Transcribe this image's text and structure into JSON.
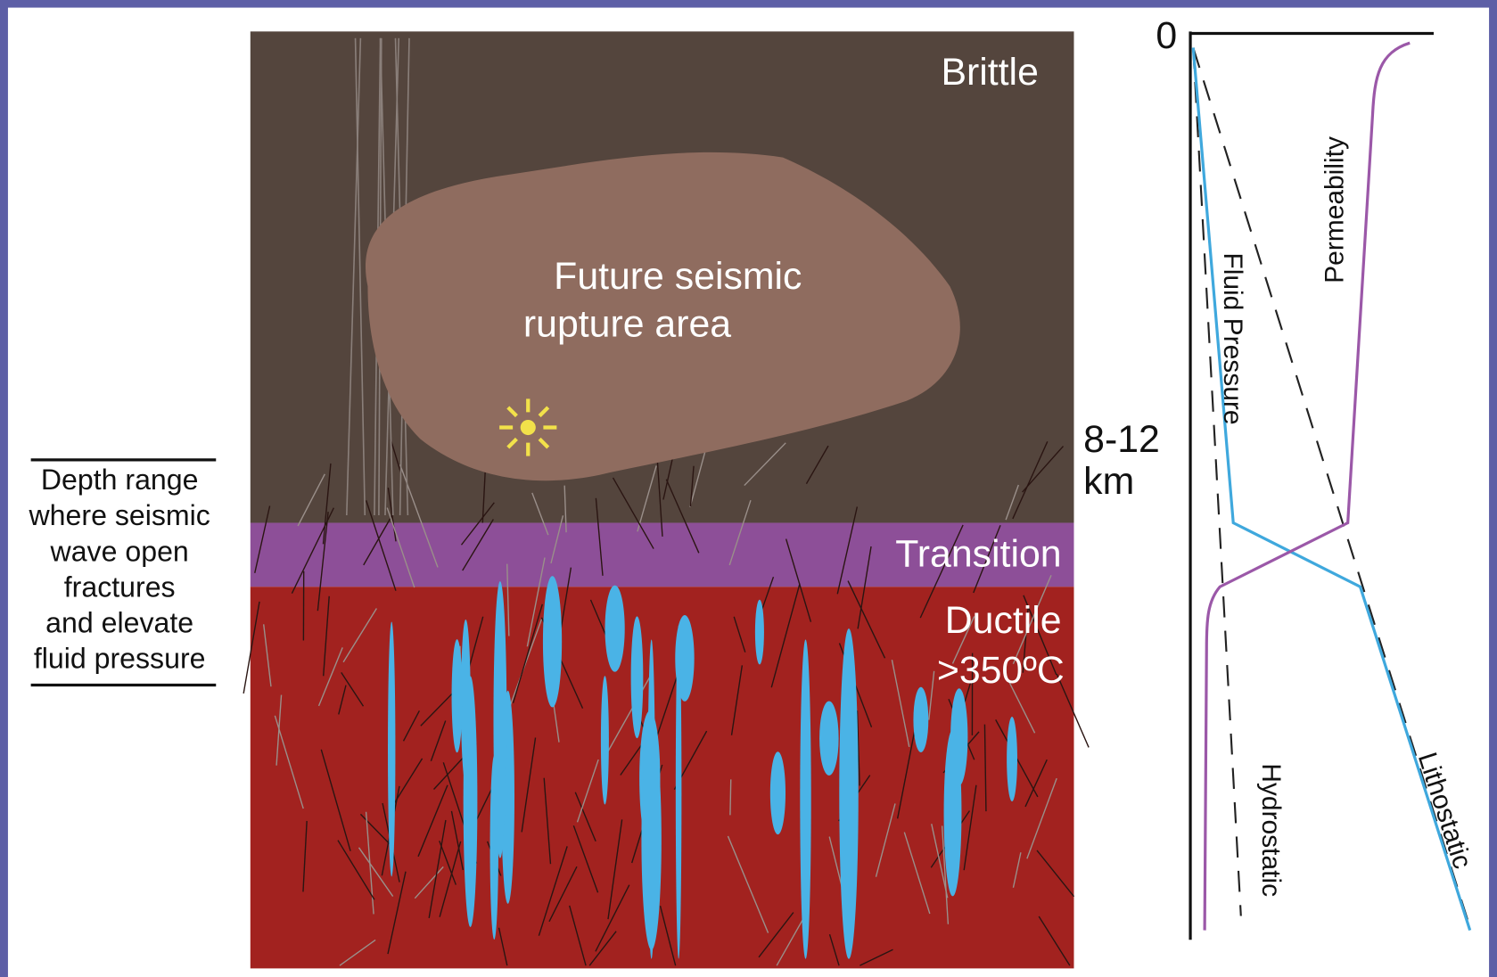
{
  "layers": {
    "brittle": "Brittle",
    "transition": "Transition",
    "ductile": [
      "Ductile",
      ">350ºC"
    ]
  },
  "rupture_area": [
    "Future seismic",
    "rupture area"
  ],
  "depth_marker": [
    "8-12",
    "km"
  ],
  "depth_note": [
    "Depth range",
    "where seismic",
    "wave open",
    "fractures",
    "and elevate",
    "fluid pressure"
  ],
  "profile": {
    "origin": "0",
    "curves": {
      "permeability": "Permeability",
      "fluid_pressure": "Fluid Pressure",
      "hydrostatic": "Hydrostatic",
      "lithostatic": "Lithostatic"
    }
  }
}
